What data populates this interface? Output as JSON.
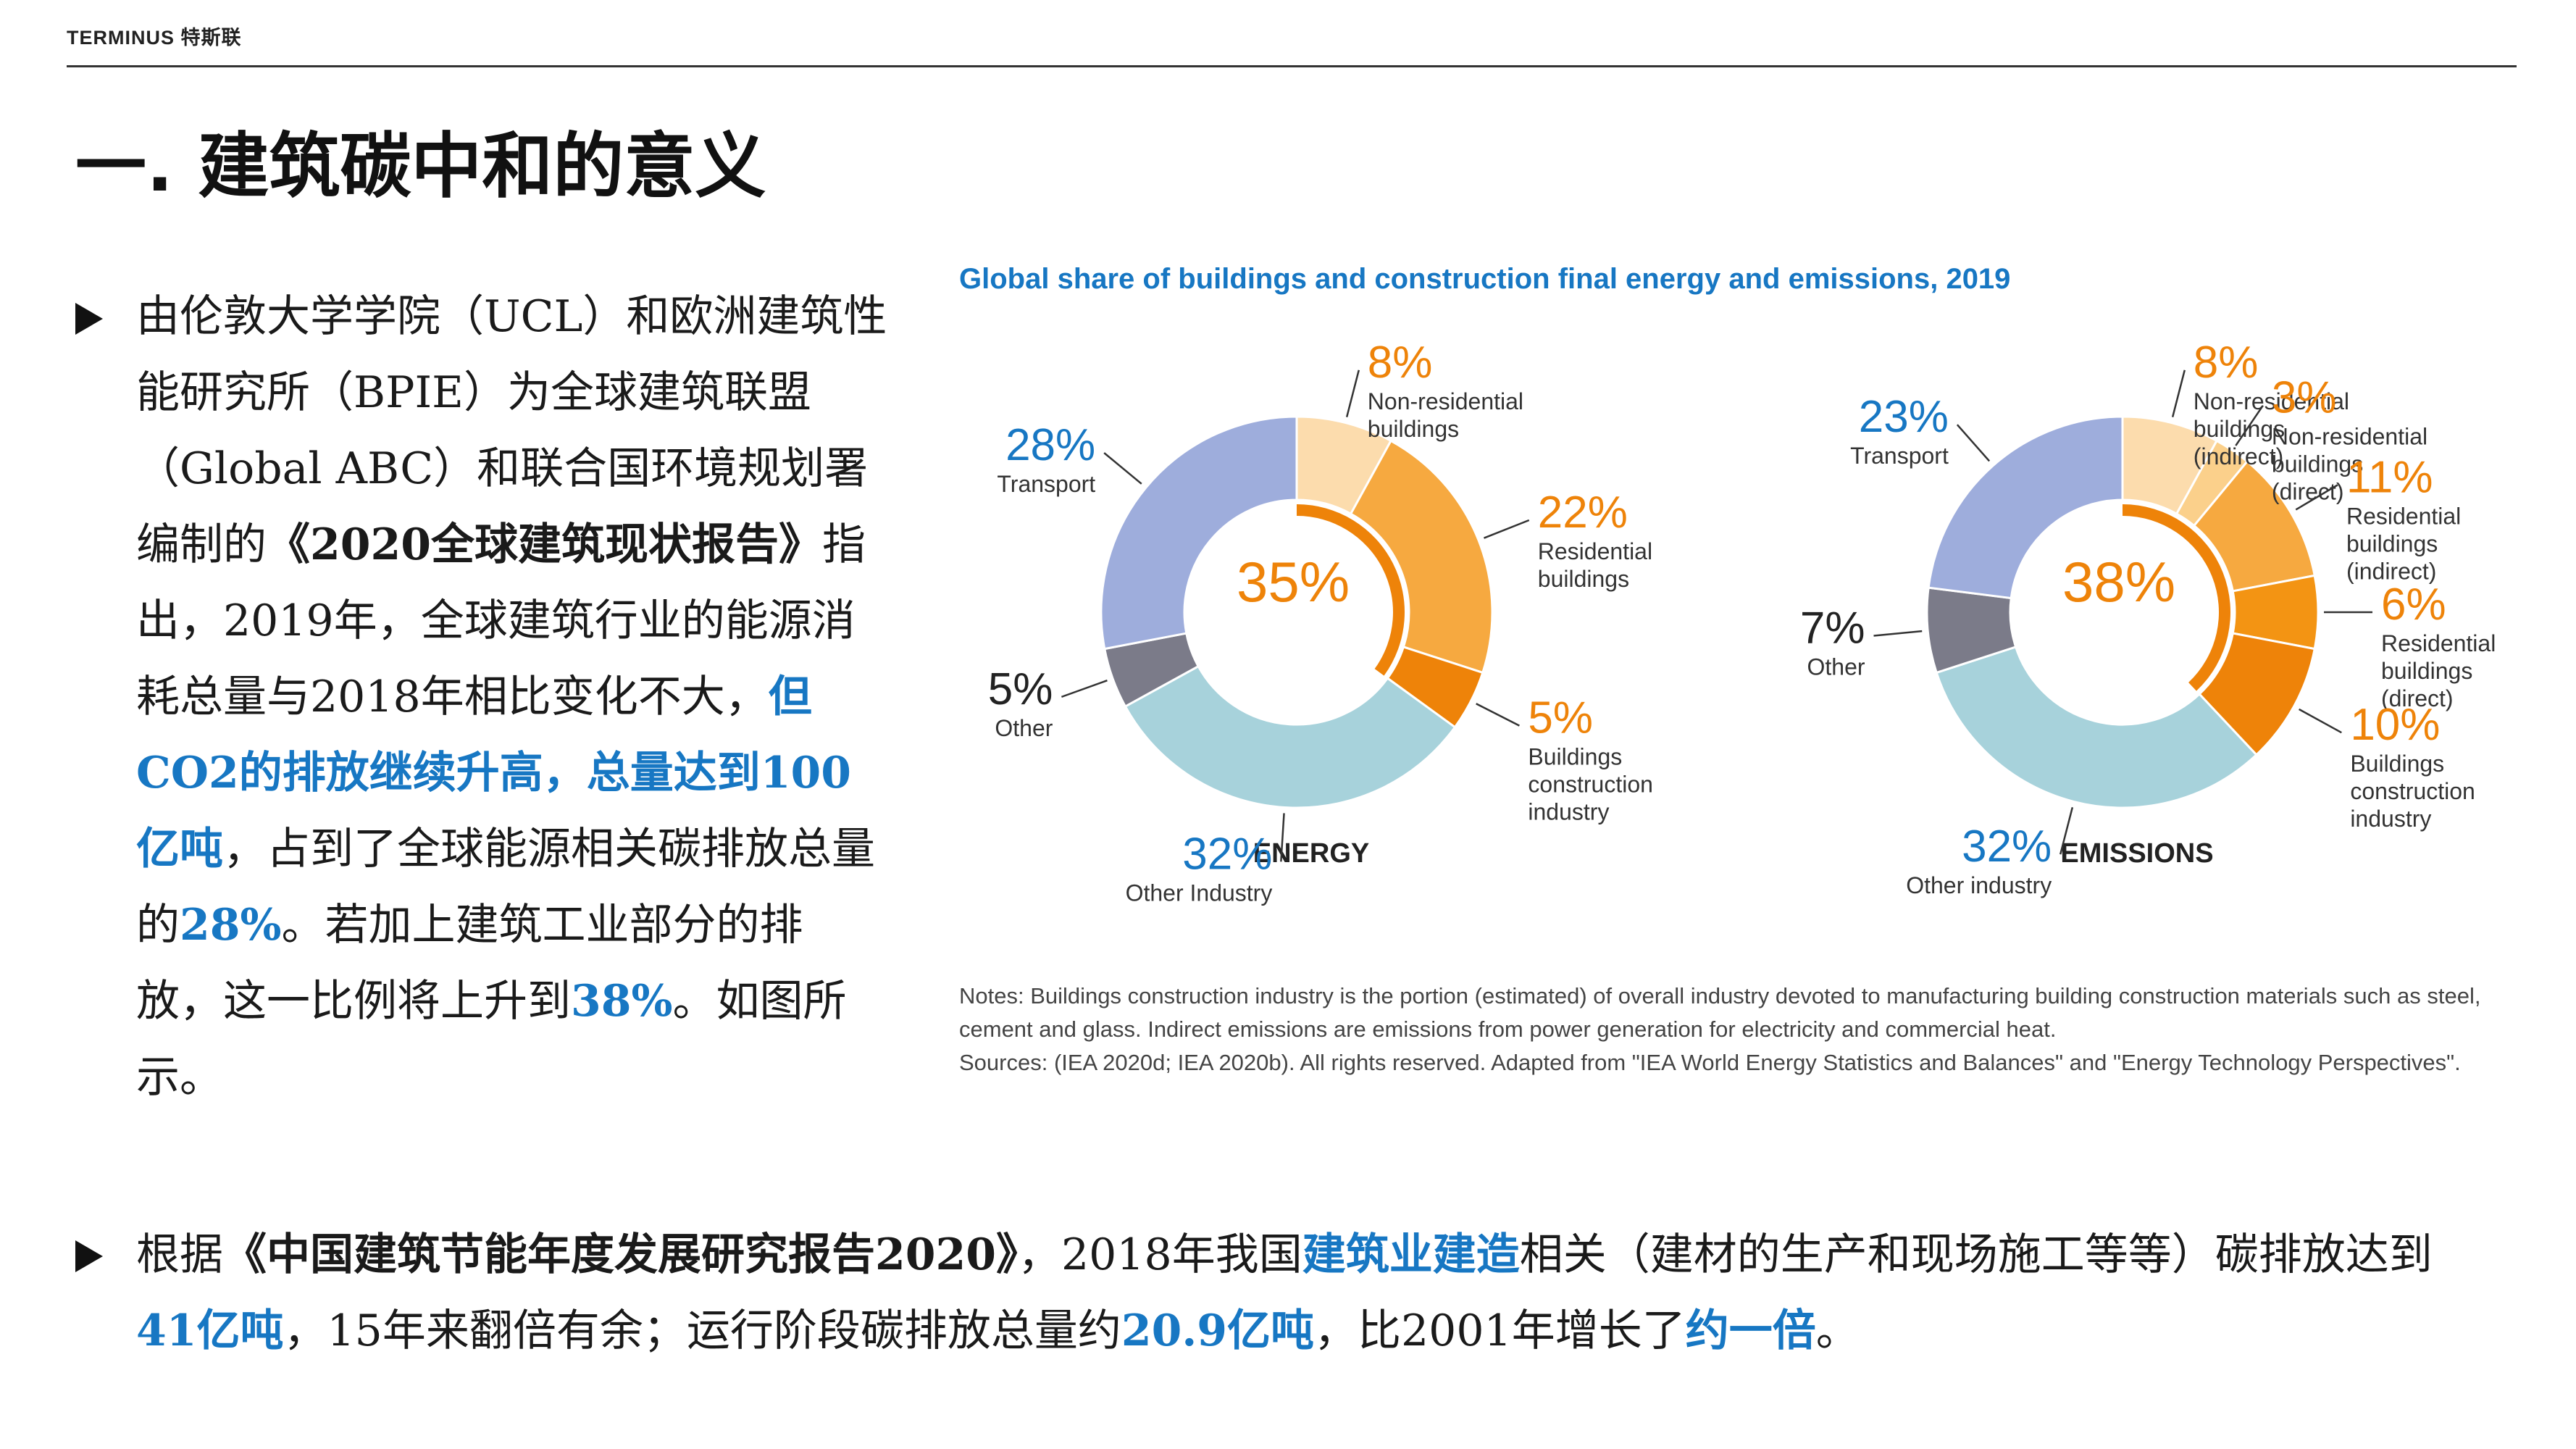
{
  "header": {
    "brand": "TERMINUS 特斯联",
    "title": "一. 建筑碳中和的意义"
  },
  "para1": {
    "t1": "由伦敦大学学院（UCL）和欧洲建筑性能研究所（BPIE）为全球建筑联盟（Global ABC）和联合国环境规划署编制的",
    "t2": "《2020全球建筑现状报告》",
    "t3": "指出，2019年，全球建筑行业的能源消耗总量与2018年相比变化不大，",
    "t4": "但CO2的排放继续升高，总量达到100亿吨",
    "t5": "，占到了全球能源相关碳排放总量的",
    "t6": "28%",
    "t7": "。若加上建筑工业部分的排放，这一比例将上升到",
    "t8": "38%",
    "t9": "。如图所示。"
  },
  "para2": {
    "t1": "根据",
    "t2": "《中国建筑节能年度发展研究报告2020》",
    "t3": "，2018年我国",
    "t4": "建筑业建造",
    "t5": "相关（建材的生产和现场施工等等）碳排放达到",
    "t6": "41亿吨",
    "t7": "，15年来翻倍有余；运行阶段碳排放总量约",
    "t8": "20.9亿吨",
    "t9": "，比2001年增长了",
    "t10": "约一倍",
    "t11": "。"
  },
  "chart_data": {
    "type": "pie",
    "title": "Global share of buildings and construction final energy and emissions, 2019",
    "charts": [
      {
        "name": "ENERGY",
        "center_value": "35%",
        "slices": [
          {
            "pct": "8%",
            "value": 8,
            "label": "Non-residential buildings",
            "color": "#fcdcad"
          },
          {
            "pct": "22%",
            "value": 22,
            "label": "Residential buildings",
            "color": "#f6a940"
          },
          {
            "pct": "5%",
            "value": 5,
            "label": "Buildings construction industry",
            "color": "#ee8309"
          },
          {
            "pct": "32%",
            "value": 32,
            "label": "Other Industry",
            "color": "#a7d2db"
          },
          {
            "pct": "5%",
            "value": 5,
            "label": "Other",
            "color": "#7b7b89"
          },
          {
            "pct": "28%",
            "value": 28,
            "label": "Transport",
            "color": "#9eaddc"
          }
        ]
      },
      {
        "name": "EMISSIONS",
        "center_value": "38%",
        "slices": [
          {
            "pct": "8%",
            "value": 8,
            "label": "Non-residential buildings (indirect)",
            "color": "#fcdcad"
          },
          {
            "pct": "3%",
            "value": 3,
            "label": "Non-residential buildings (direct)",
            "color": "#fbd08b"
          },
          {
            "pct": "11%",
            "value": 11,
            "label": "Residential buildings (indirect)",
            "color": "#f6a940"
          },
          {
            "pct": "6%",
            "value": 6,
            "label": "Residential buildings (direct)",
            "color": "#f39413"
          },
          {
            "pct": "10%",
            "value": 10,
            "label": "Buildings construction industry",
            "color": "#ee8309"
          },
          {
            "pct": "32%",
            "value": 32,
            "label": "Other industry",
            "color": "#a7d2db"
          },
          {
            "pct": "7%",
            "value": 7,
            "label": "Other",
            "color": "#7b7b89"
          },
          {
            "pct": "23%",
            "value": 23,
            "label": "Transport",
            "color": "#9eaddc"
          }
        ]
      }
    ],
    "accent_color": "#ee8309",
    "title_color": "#1777c3",
    "notes": "Notes: Buildings construction industry is the portion (estimated) of overall industry devoted to manufacturing building construction materials such as steel, cement and glass. Indirect emissions are emissions from power generation for electricity and commercial heat.",
    "sources": "Sources: (IEA 2020d; IEA 2020b). All rights reserved. Adapted from \"IEA World Energy Statistics and Balances\" and \"Energy Technology Perspectives\"."
  }
}
